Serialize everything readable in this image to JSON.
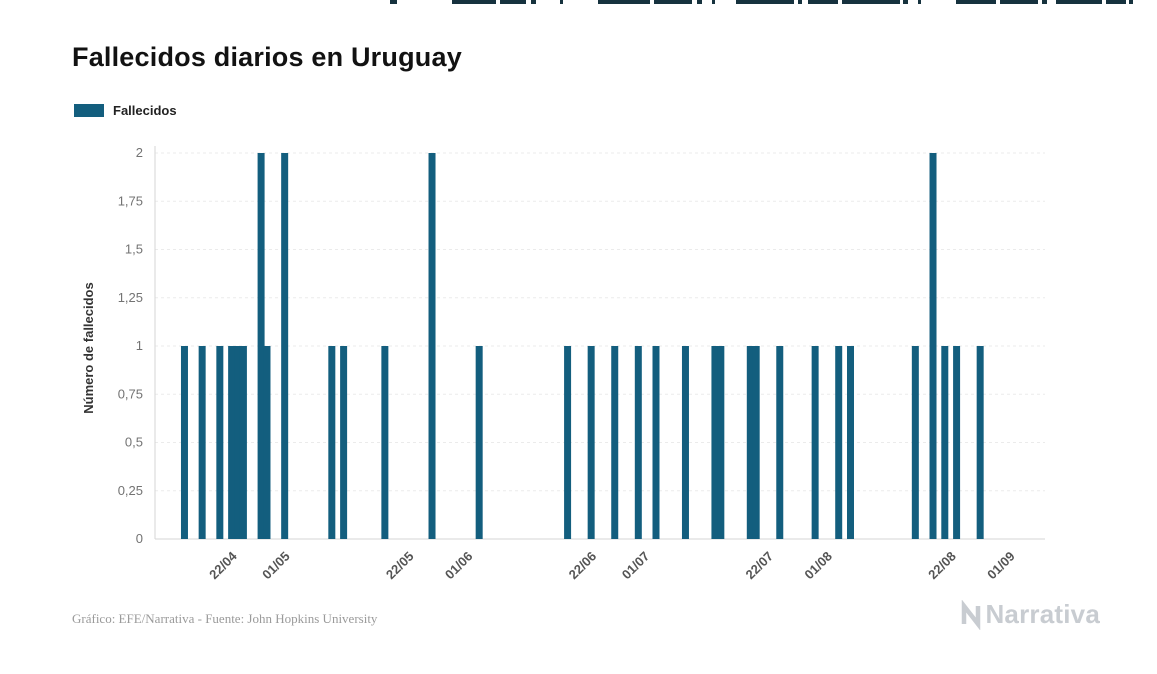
{
  "page": {
    "title": "Fallecidos diarios en Uruguay"
  },
  "legend": {
    "label": "Fallecidos"
  },
  "colors": {
    "bar": "#135e7e",
    "grid": "#ebebeb",
    "axis": "#d6d6d6",
    "y_tick_text": "#737373",
    "x_tick_text": "#555555",
    "ylabel_text": "#333333",
    "strip": "#16323e",
    "brand": "#c8ccd1"
  },
  "chart_data": {
    "type": "bar",
    "title": "Fallecidos diarios en Uruguay",
    "xlabel": "",
    "ylabel": "Número de fallecidos",
    "ylim": [
      0,
      2
    ],
    "grid": true,
    "legend_position": "top-left",
    "x_domain": [
      "09/04",
      "07/09"
    ],
    "x_ticks": [
      "22/04",
      "01/05",
      "22/05",
      "01/06",
      "22/06",
      "01/07",
      "22/07",
      "01/08",
      "22/08",
      "01/09"
    ],
    "y_ticks": [
      {
        "label": "0",
        "value": 0
      },
      {
        "label": "0,25",
        "value": 0.25
      },
      {
        "label": "0,5",
        "value": 0.5
      },
      {
        "label": "0,75",
        "value": 0.75
      },
      {
        "label": "1",
        "value": 1
      },
      {
        "label": "1,25",
        "value": 1.25
      },
      {
        "label": "1,5",
        "value": 1.5
      },
      {
        "label": "1,75",
        "value": 1.75
      },
      {
        "label": "2",
        "value": 2
      }
    ],
    "series": [
      {
        "name": "Fallecidos",
        "points": [
          {
            "date": "14/04",
            "value": 1
          },
          {
            "date": "17/04",
            "value": 1
          },
          {
            "date": "20/04",
            "value": 1
          },
          {
            "date": "22/04",
            "value": 1
          },
          {
            "date": "23/04",
            "value": 1
          },
          {
            "date": "24/04",
            "value": 1
          },
          {
            "date": "27/04",
            "value": 2
          },
          {
            "date": "28/04",
            "value": 1
          },
          {
            "date": "01/05",
            "value": 2
          },
          {
            "date": "09/05",
            "value": 1
          },
          {
            "date": "11/05",
            "value": 1
          },
          {
            "date": "18/05",
            "value": 1
          },
          {
            "date": "26/05",
            "value": 2
          },
          {
            "date": "03/06",
            "value": 1
          },
          {
            "date": "18/06",
            "value": 1
          },
          {
            "date": "22/06",
            "value": 1
          },
          {
            "date": "26/06",
            "value": 1
          },
          {
            "date": "30/06",
            "value": 1
          },
          {
            "date": "03/07",
            "value": 1
          },
          {
            "date": "08/07",
            "value": 1
          },
          {
            "date": "13/07",
            "value": 1
          },
          {
            "date": "14/07",
            "value": 1
          },
          {
            "date": "19/07",
            "value": 1
          },
          {
            "date": "20/07",
            "value": 1
          },
          {
            "date": "24/07",
            "value": 1
          },
          {
            "date": "30/07",
            "value": 1
          },
          {
            "date": "03/08",
            "value": 1
          },
          {
            "date": "05/08",
            "value": 1
          },
          {
            "date": "16/08",
            "value": 1
          },
          {
            "date": "19/08",
            "value": 2
          },
          {
            "date": "21/08",
            "value": 1
          },
          {
            "date": "23/08",
            "value": 1
          },
          {
            "date": "27/08",
            "value": 1
          }
        ]
      }
    ]
  },
  "top_strip": {
    "segments": [
      [
        390,
        7
      ],
      [
        452,
        44
      ],
      [
        500,
        26
      ],
      [
        531,
        5
      ],
      [
        560,
        3
      ],
      [
        598,
        52
      ],
      [
        654,
        38
      ],
      [
        697,
        5
      ],
      [
        712,
        3
      ],
      [
        736,
        58
      ],
      [
        798,
        4
      ],
      [
        808,
        30
      ],
      [
        842,
        58
      ],
      [
        903,
        5
      ],
      [
        918,
        3
      ],
      [
        956,
        40
      ],
      [
        1000,
        38
      ],
      [
        1042,
        5
      ],
      [
        1056,
        46
      ],
      [
        1106,
        20
      ],
      [
        1129,
        4
      ]
    ]
  },
  "footer": {
    "credit": "Gráfico: EFE/Narrativa - Fuente: John Hopkins University",
    "brand": "Narrativa"
  }
}
